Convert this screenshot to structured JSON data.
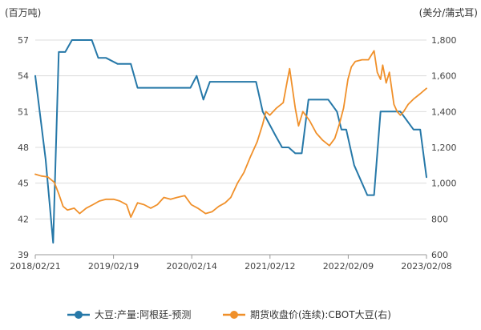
{
  "chart_data": {
    "type": "line",
    "left_unit": "(百万吨)",
    "right_unit": "(美分/蒲式耳)",
    "x_ticks": [
      "2018/02/21",
      "2019/02/19",
      "2020/02/14",
      "2021/02/12",
      "2022/02/09",
      "2023/02/08"
    ],
    "x_range": [
      "2018-02-21",
      "2023-02-08"
    ],
    "y_left": {
      "min": 39,
      "max": 57,
      "ticks": [
        39,
        42,
        45,
        48,
        51,
        54,
        57
      ]
    },
    "y_right": {
      "min": 600,
      "max": 1800,
      "ticks": [
        "600",
        "800",
        "1,000",
        "1,200",
        "1,400",
        "1,600",
        "1,800"
      ]
    },
    "grid": "horizontal",
    "legend_position": "bottom",
    "series": [
      {
        "name": "大豆:产量:阿根廷-预测",
        "axis": "left",
        "color": "#2678a8",
        "points": [
          [
            "2018-02-21",
            54.0
          ],
          [
            "2018-04-10",
            47.0
          ],
          [
            "2018-05-15",
            40.0
          ],
          [
            "2018-06-10",
            56.0
          ],
          [
            "2018-07-10",
            56.0
          ],
          [
            "2018-08-10",
            57.0
          ],
          [
            "2018-11-10",
            57.0
          ],
          [
            "2018-12-10",
            55.5
          ],
          [
            "2019-01-15",
            55.5
          ],
          [
            "2019-03-10",
            55.0
          ],
          [
            "2019-05-10",
            55.0
          ],
          [
            "2019-06-10",
            53.0
          ],
          [
            "2019-09-10",
            53.0
          ],
          [
            "2019-12-10",
            53.0
          ],
          [
            "2020-02-10",
            53.0
          ],
          [
            "2020-03-10",
            54.0
          ],
          [
            "2020-04-10",
            52.0
          ],
          [
            "2020-05-10",
            53.5
          ],
          [
            "2020-07-10",
            53.5
          ],
          [
            "2020-10-10",
            53.5
          ],
          [
            "2020-12-10",
            53.5
          ],
          [
            "2021-01-10",
            51.0
          ],
          [
            "2021-03-10",
            49.0
          ],
          [
            "2021-04-10",
            48.0
          ],
          [
            "2021-05-10",
            48.0
          ],
          [
            "2021-06-10",
            47.5
          ],
          [
            "2021-07-10",
            47.5
          ],
          [
            "2021-08-10",
            52.0
          ],
          [
            "2021-11-10",
            52.0
          ],
          [
            "2021-12-20",
            51.0
          ],
          [
            "2022-01-10",
            49.5
          ],
          [
            "2022-02-01",
            49.5
          ],
          [
            "2022-03-10",
            46.5
          ],
          [
            "2022-05-10",
            44.0
          ],
          [
            "2022-06-10",
            44.0
          ],
          [
            "2022-07-10",
            51.0
          ],
          [
            "2022-10-10",
            51.0
          ],
          [
            "2022-12-10",
            49.5
          ],
          [
            "2023-01-10",
            49.5
          ],
          [
            "2023-02-08",
            45.5
          ]
        ]
      },
      {
        "name": "期货收盘价(连续):CBOT大豆(右)",
        "axis": "right",
        "color": "#f0902a",
        "points": [
          [
            "2018-02-21",
            1050
          ],
          [
            "2018-03-20",
            1040
          ],
          [
            "2018-04-20",
            1035
          ],
          [
            "2018-05-20",
            1005
          ],
          [
            "2018-06-10",
            940
          ],
          [
            "2018-06-30",
            870
          ],
          [
            "2018-07-20",
            850
          ],
          [
            "2018-08-20",
            860
          ],
          [
            "2018-09-15",
            830
          ],
          [
            "2018-10-15",
            860
          ],
          [
            "2018-11-15",
            880
          ],
          [
            "2018-12-15",
            900
          ],
          [
            "2019-01-15",
            910
          ],
          [
            "2019-02-19",
            910
          ],
          [
            "2019-03-20",
            900
          ],
          [
            "2019-04-20",
            880
          ],
          [
            "2019-05-10",
            810
          ],
          [
            "2019-06-10",
            890
          ],
          [
            "2019-07-10",
            880
          ],
          [
            "2019-08-10",
            860
          ],
          [
            "2019-09-10",
            880
          ],
          [
            "2019-10-10",
            920
          ],
          [
            "2019-11-10",
            910
          ],
          [
            "2019-12-10",
            920
          ],
          [
            "2020-01-15",
            930
          ],
          [
            "2020-02-14",
            880
          ],
          [
            "2020-03-15",
            860
          ],
          [
            "2020-04-20",
            830
          ],
          [
            "2020-05-20",
            840
          ],
          [
            "2020-06-20",
            870
          ],
          [
            "2020-07-20",
            890
          ],
          [
            "2020-08-15",
            920
          ],
          [
            "2020-09-15",
            1000
          ],
          [
            "2020-10-15",
            1060
          ],
          [
            "2020-11-15",
            1150
          ],
          [
            "2020-12-15",
            1230
          ],
          [
            "2021-01-10",
            1330
          ],
          [
            "2021-01-25",
            1400
          ],
          [
            "2021-02-12",
            1380
          ],
          [
            "2021-03-15",
            1420
          ],
          [
            "2021-04-15",
            1450
          ],
          [
            "2021-05-05",
            1580
          ],
          [
            "2021-05-15",
            1640
          ],
          [
            "2021-06-10",
            1420
          ],
          [
            "2021-06-25",
            1320
          ],
          [
            "2021-07-15",
            1400
          ],
          [
            "2021-08-15",
            1350
          ],
          [
            "2021-09-15",
            1280
          ],
          [
            "2021-10-15",
            1240
          ],
          [
            "2021-11-15",
            1210
          ],
          [
            "2021-12-10",
            1250
          ],
          [
            "2021-12-31",
            1330
          ],
          [
            "2022-01-20",
            1420
          ],
          [
            "2022-02-09",
            1580
          ],
          [
            "2022-02-25",
            1650
          ],
          [
            "2022-03-15",
            1680
          ],
          [
            "2022-04-15",
            1690
          ],
          [
            "2022-05-15",
            1690
          ],
          [
            "2022-06-10",
            1740
          ],
          [
            "2022-06-25",
            1620
          ],
          [
            "2022-07-10",
            1580
          ],
          [
            "2022-07-20",
            1660
          ],
          [
            "2022-08-05",
            1560
          ],
          [
            "2022-08-20",
            1620
          ],
          [
            "2022-09-10",
            1440
          ],
          [
            "2022-09-25",
            1400
          ],
          [
            "2022-10-10",
            1380
          ],
          [
            "2022-10-25",
            1400
          ],
          [
            "2022-11-15",
            1440
          ],
          [
            "2022-12-10",
            1470
          ],
          [
            "2023-01-10",
            1500
          ],
          [
            "2023-02-08",
            1530
          ]
        ]
      }
    ]
  }
}
